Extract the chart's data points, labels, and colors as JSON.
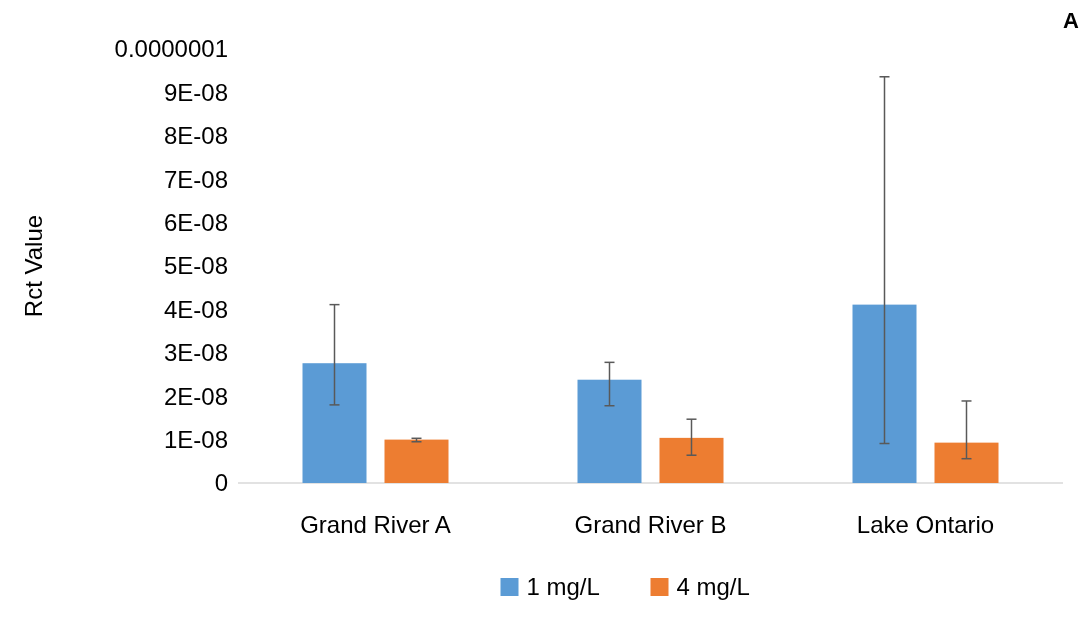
{
  "chart_data": {
    "type": "bar",
    "ylabel": "Rct Value",
    "annotations": [
      "A"
    ],
    "categories": [
      "Grand River A",
      "Grand River B",
      "Lake Ontario"
    ],
    "series": [
      {
        "name": "1 mg/L",
        "color": "#5b9bd5",
        "values": [
          2.76e-08,
          2.38e-08,
          4.11e-08
        ],
        "errors": [
          [
            1.8e-08,
            4.11e-08
          ],
          [
            1.78e-08,
            2.78e-08
          ],
          [
            9.1e-09,
            9.36e-08
          ]
        ]
      },
      {
        "name": "4 mg/L",
        "color": "#ed7d31",
        "values": [
          1e-08,
          1.04e-08,
          9.3e-09
        ],
        "errors": [
          [
            9.5e-09,
            1.03e-08
          ],
          [
            6.4e-09,
            1.47e-08
          ],
          [
            5.6e-09,
            1.89e-08
          ]
        ]
      }
    ],
    "ylim": [
      0,
      1e-07
    ],
    "yticks": [
      0,
      {
        "value": 1e-08,
        "label": "1E-08"
      },
      {
        "value": 2e-08,
        "label": "2E-08"
      },
      {
        "value": 3e-08,
        "label": "3E-08"
      },
      {
        "value": 4e-08,
        "label": "4E-08"
      },
      {
        "value": 5e-08,
        "label": "5E-08"
      },
      {
        "value": 6e-08,
        "label": "6E-08"
      },
      {
        "value": 7e-08,
        "label": "7E-08"
      },
      {
        "value": 8e-08,
        "label": "8E-08"
      },
      {
        "value": 9e-08,
        "label": "9E-08"
      },
      {
        "value": 1e-07,
        "label": "0.0000001"
      }
    ],
    "legend": "bottom",
    "grid": false
  }
}
